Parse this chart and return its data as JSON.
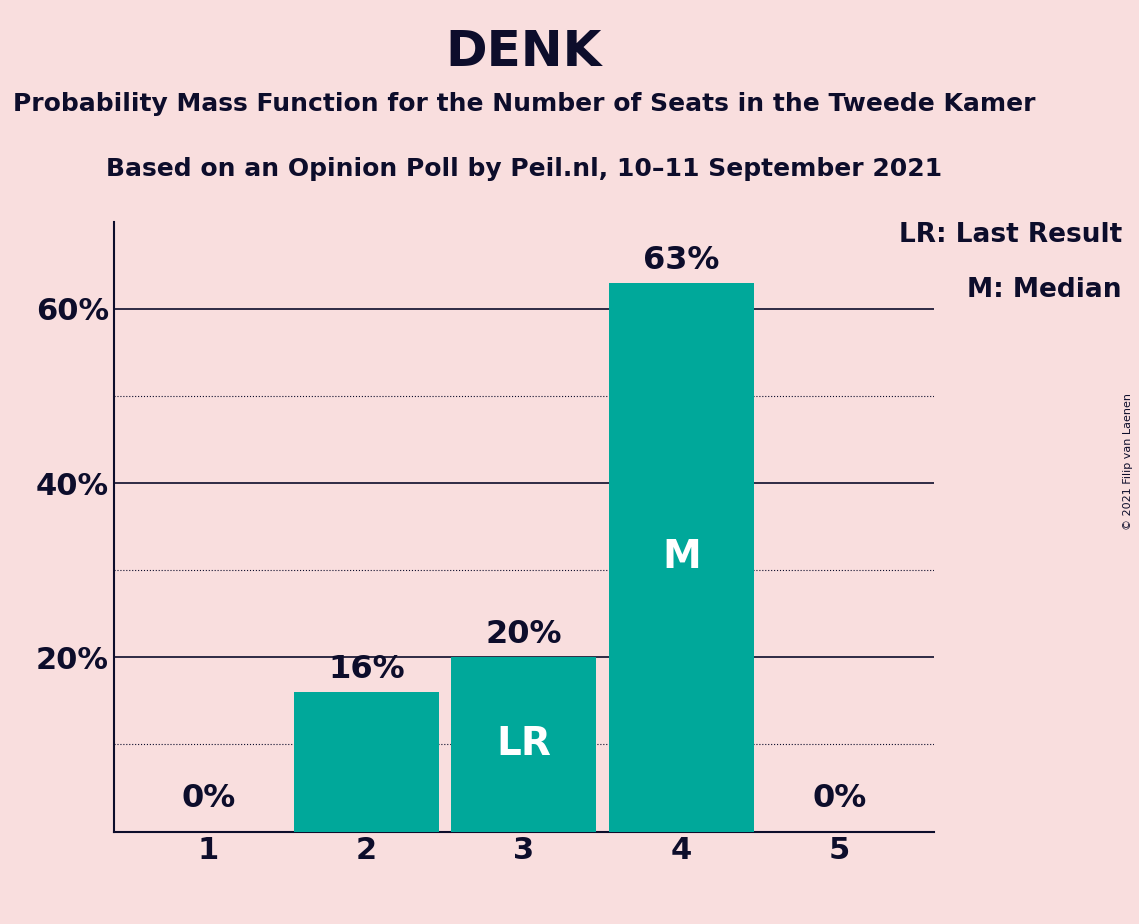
{
  "title": "DENK",
  "subtitle1": "Probability Mass Function for the Number of Seats in the Tweede Kamer",
  "subtitle2": "Based on an Opinion Poll by Peil.nl, 10–11 September 2021",
  "copyright": "© 2021 Filip van Laenen",
  "categories": [
    1,
    2,
    3,
    4,
    5
  ],
  "values": [
    0,
    16,
    20,
    63,
    0
  ],
  "bar_color": "#00A89A",
  "background_color": "#F9DEDE",
  "text_color": "#0D0D2B",
  "bar_text_color_dark": "#0D0D2B",
  "bar_text_color_light": "#FFFFFF",
  "label_LR": "LR",
  "label_M": "M",
  "LR_bar": 3,
  "M_bar": 4,
  "legend_LR": "LR: Last Result",
  "legend_M": "M: Median",
  "ylim": [
    0,
    70
  ],
  "major_yticks": [
    0,
    20,
    40,
    60
  ],
  "major_ytick_labels": [
    "",
    "20%",
    "40%",
    "60%"
  ],
  "minor_yticks": [
    10,
    30,
    50
  ],
  "title_fontsize": 36,
  "subtitle_fontsize": 18,
  "tick_fontsize": 22,
  "bar_label_fontsize": 23,
  "bar_inner_label_fontsize": 28,
  "legend_fontsize": 19
}
